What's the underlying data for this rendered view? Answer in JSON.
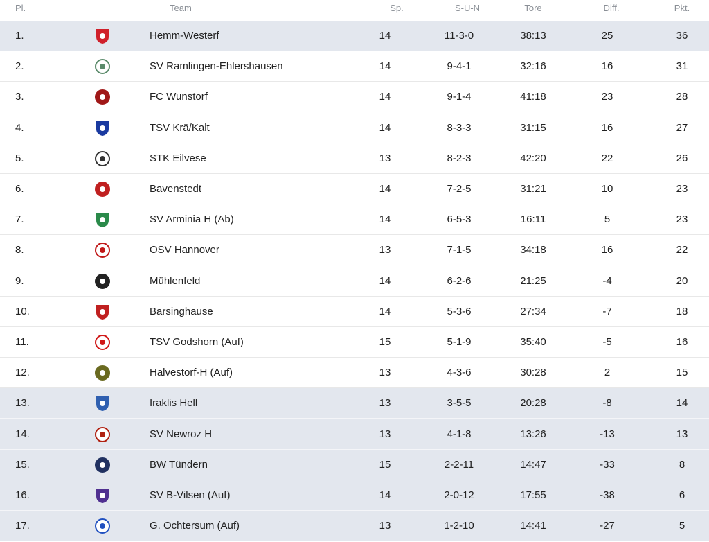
{
  "table": {
    "header": [
      "Pl.",
      "Team",
      "Sp.",
      "S-U-N",
      "Tore",
      "Diff.",
      "Pkt."
    ],
    "rows": [
      [
        "1.",
        "Hemm-Westerf",
        14,
        "11-3-0",
        "38:13",
        25,
        36
      ],
      [
        "2.",
        "SV Ramlingen-Ehlershausen",
        14,
        "9-4-1",
        "32:16",
        16,
        31
      ],
      [
        "3.",
        "FC Wunstorf",
        14,
        "9-1-4",
        "41:18",
        23,
        28
      ],
      [
        "4.",
        "TSV Krä/Kalt",
        14,
        "8-3-3",
        "31:15",
        16,
        27
      ],
      [
        "5.",
        "STK Eilvese",
        13,
        "8-2-3",
        "42:20",
        22,
        26
      ],
      [
        "6.",
        "Bavenstedt",
        14,
        "7-2-5",
        "31:21",
        10,
        23
      ],
      [
        "7.",
        "SV Arminia H (Ab)",
        14,
        "6-5-3",
        "16:11",
        5,
        23
      ],
      [
        "8.",
        "OSV Hannover",
        13,
        "7-1-5",
        "34:18",
        16,
        22
      ],
      [
        "9.",
        "Mühlenfeld",
        14,
        "6-2-6",
        "21:25",
        -4,
        20
      ],
      [
        "10.",
        "Barsinghause",
        14,
        "5-3-6",
        "27:34",
        -7,
        18
      ],
      [
        "11.",
        "TSV Godshorn (Auf)",
        15,
        "5-1-9",
        "35:40",
        -5,
        16
      ],
      [
        "12.",
        "Halvestorf-H (Auf)",
        13,
        "4-3-6",
        "30:28",
        2,
        15
      ],
      [
        "13.",
        "Iraklis Hell",
        13,
        "3-5-5",
        "20:28",
        -8,
        14
      ],
      [
        "14.",
        "SV Newroz H",
        13,
        "4-1-8",
        "13:26",
        -13,
        13
      ],
      [
        "15.",
        "BW Tündern",
        15,
        "2-2-11",
        "14:47",
        -33,
        8
      ],
      [
        "16.",
        "SV B-Vilsen (Auf)",
        14,
        "2-0-12",
        "17:55",
        -38,
        6
      ],
      [
        "17.",
        "G. Ochtersum (Auf)",
        13,
        "1-2-10",
        "14:41",
        -27,
        5
      ]
    ]
  }
}
